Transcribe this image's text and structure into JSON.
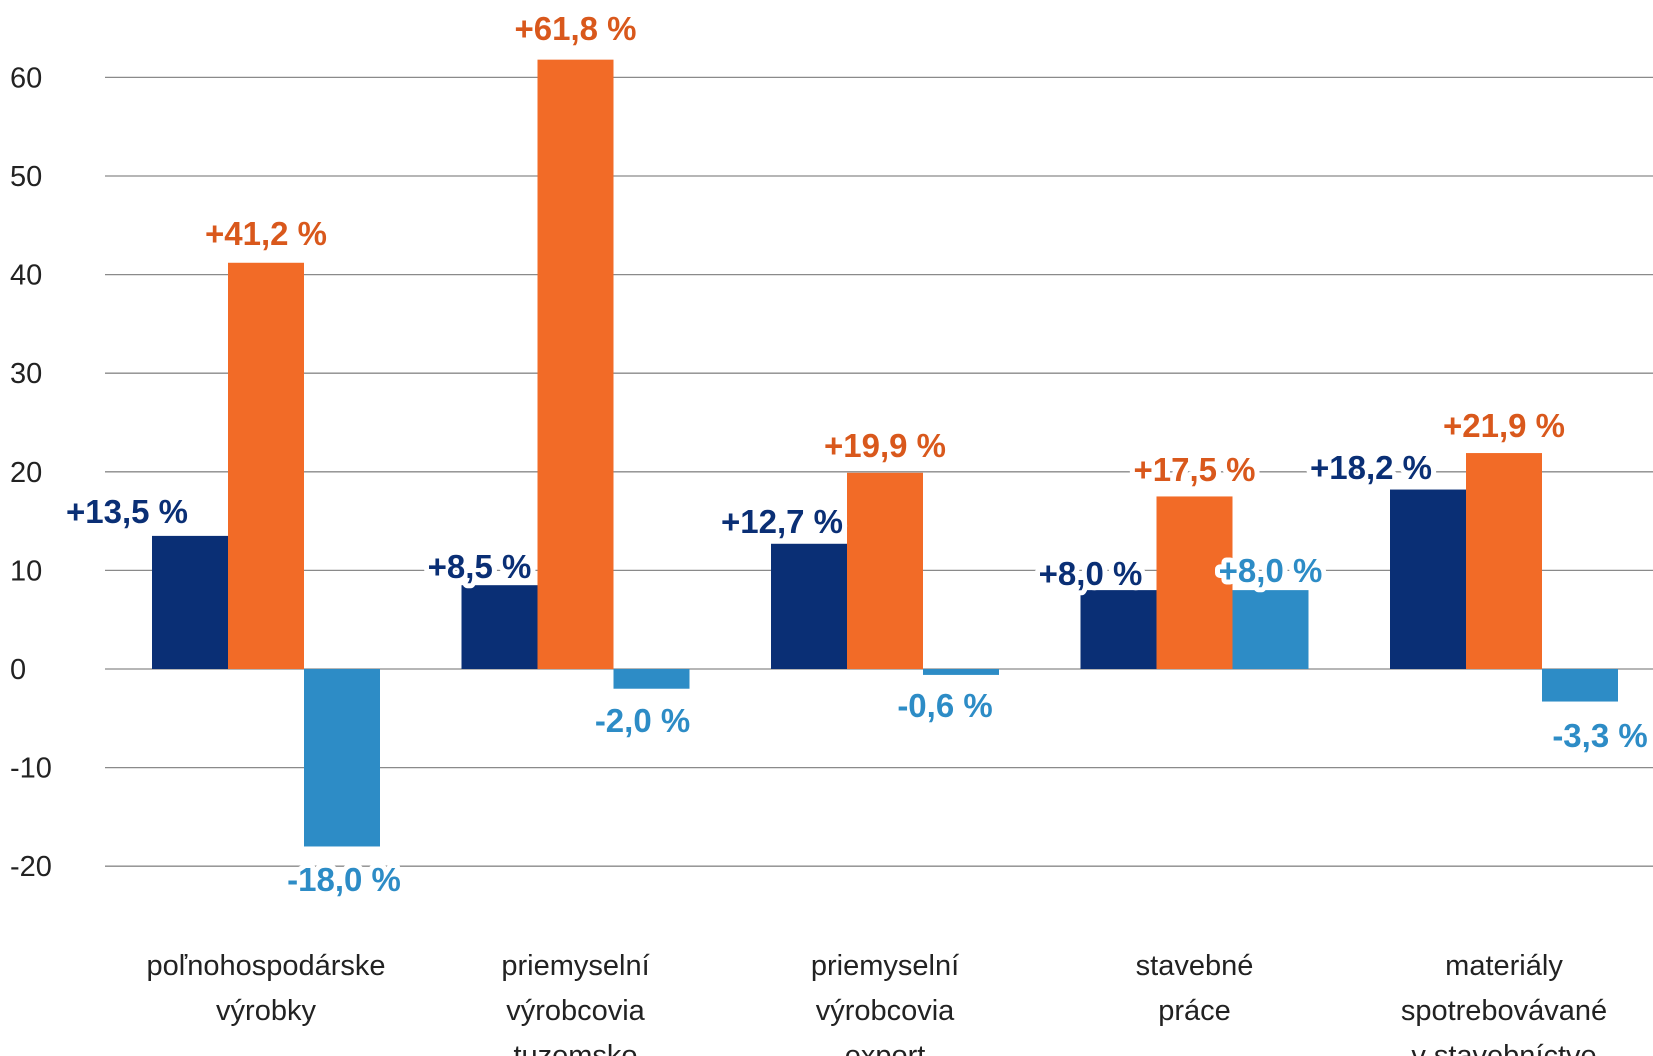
{
  "chart_data": {
    "type": "bar",
    "categories": [
      [
        "poľnohospodárske",
        "výrobky"
      ],
      [
        "priemyselní",
        "výrobcovia",
        "tuzemsko"
      ],
      [
        "priemyselní",
        "výrobcovia",
        "export"
      ],
      [
        "stavebné",
        "práce"
      ],
      [
        "materiály",
        "spotrebovávané",
        "v stavebníctve"
      ]
    ],
    "series": [
      {
        "values": [
          13.5,
          8.5,
          12.7,
          8.0,
          18.2
        ],
        "color": "#0A2F75",
        "labels": [
          "+13,5 %",
          "+8,5 %",
          "+12,7 %",
          "+8,0 %",
          "+18,2 %"
        ]
      },
      {
        "values": [
          41.2,
          61.8,
          19.9,
          17.5,
          21.9
        ],
        "color": "#F26B27",
        "label_color": "#D9581C",
        "labels": [
          "+41,2 %",
          "+61,8 %",
          "+19,9 %",
          "+17,5 %",
          "+21,9 %"
        ]
      },
      {
        "values": [
          -18.0,
          -2.0,
          -0.6,
          8.0,
          -3.3
        ],
        "color": "#2D8CC6",
        "labels": [
          "-18,0 %",
          "-2,0 %",
          "-0,6 %",
          "+8,0 %",
          "-3,3 %"
        ]
      }
    ],
    "y_ticks": [
      "-20",
      "-10",
      "0",
      "10",
      "20",
      "30",
      "40",
      "50",
      "60"
    ],
    "ylim": [
      -20,
      60
    ],
    "grid": true,
    "legend": "none"
  }
}
